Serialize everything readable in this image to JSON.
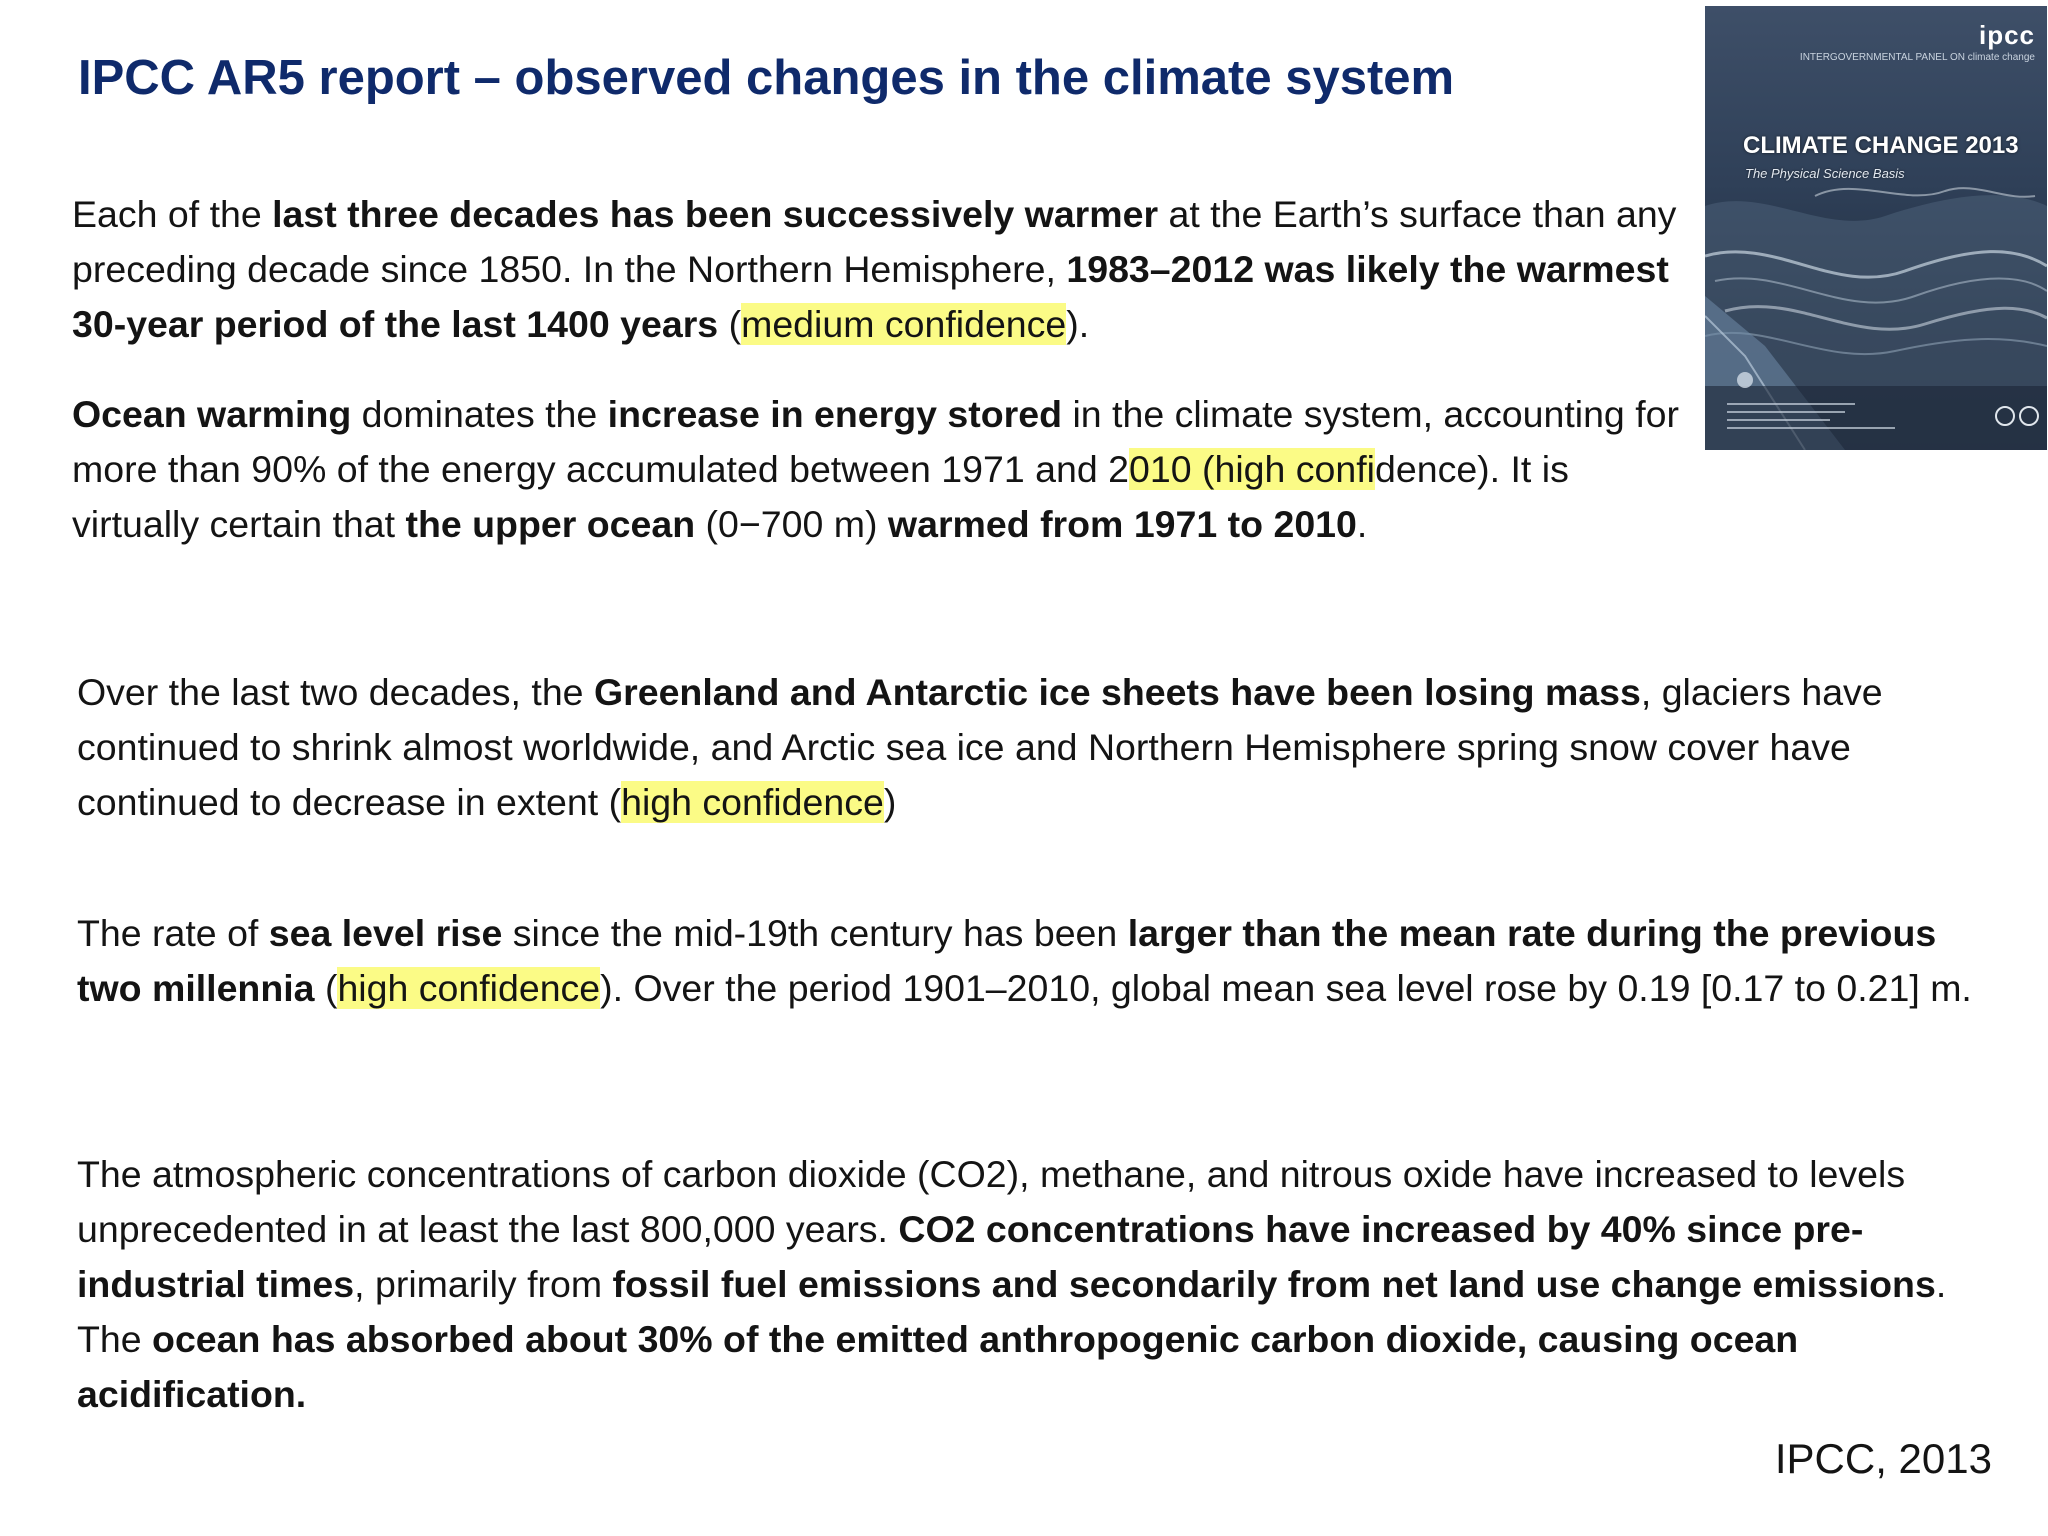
{
  "title": "IPCC AR5 report – observed changes in the climate system",
  "paragraphs": {
    "p1": {
      "s1": "Each of the ",
      "s2": "last three decades has been successively warmer",
      "s3": " at the Earth’s surface than any preceding decade since 1850. In the Northern Hemisphere, ",
      "s4": "1983–2012 was likely the warmest 30-year period of the last 1400 years",
      "s5": " (",
      "s6": "medium confidence",
      "s7": ")."
    },
    "p2": {
      "s1": "Ocean warming",
      "s2": " dominates the ",
      "s3": "increase in energy stored",
      "s4": " in the climate system, accounting for more than 90% of the energy accumulated between 1971 and 2",
      "s5": "010 (high confi",
      "s6": "dence). It is virtually certain that ",
      "s7": "the upper ocean",
      "s8": " (0−700 m) ",
      "s9": "warmed from 1971 to 2010",
      "s10": "."
    },
    "p3": {
      "s1": "Over the last two decades, the ",
      "s2": "Greenland and Antarctic ice sheets have been losing mass",
      "s3": ", glaciers have continued to shrink almost worldwide, and Arctic sea ice and Northern Hemisphere spring snow cover have continued to decrease in extent (",
      "s4": "high confidence",
      "s5": ")"
    },
    "p4": {
      "s1": "The rate of ",
      "s2": "sea level rise",
      "s3": " since the mid-19th century has been ",
      "s4": "larger than the mean rate during the previous two millennia",
      "s5": " (",
      "s6": "high confidence",
      "s7": "). Over the period 1901–2010, global mean sea level rose by 0.19 [0.17 to 0.21] m."
    },
    "p5": {
      "s1": "The atmospheric concentrations of carbon dioxide (CO2), methane, and nitrous oxide have increased to levels unprecedented in at least the last 800,000 years. ",
      "s2": "CO2 concentrations have increased by 40% since pre-industrial times",
      "s3": ", primarily from ",
      "s4": "fossil fuel emissions and secondarily from net land use change emissions",
      "s5": ". The ",
      "s6": "ocean has absorbed about 30% of the emitted anthropogenic carbon dioxide, causing ocean acidification."
    }
  },
  "citation": "IPCC, 2013",
  "cover": {
    "logo": "ipcc",
    "logo_sub": "INTERGOVERNMENTAL PANEL ON climate change",
    "title": "CLIMATE CHANGE 2013",
    "subtitle": "The Physical Science Basis"
  },
  "colors": {
    "title": "#0f2a6b",
    "highlight": "#fbfb86",
    "text": "#141414"
  }
}
